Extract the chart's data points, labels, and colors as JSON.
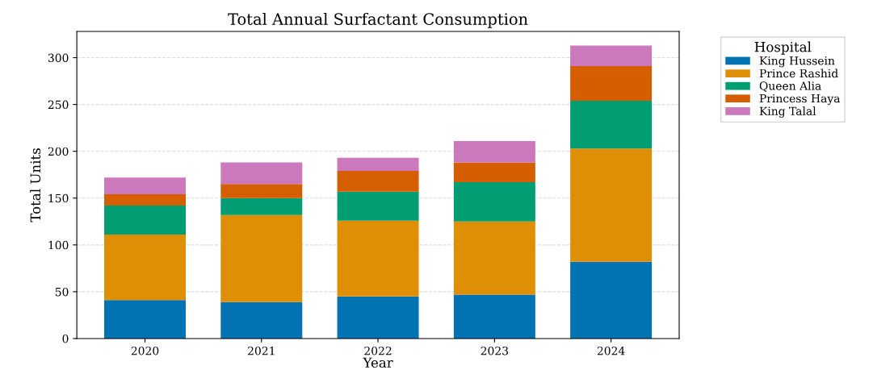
{
  "chart_data": {
    "type": "bar",
    "stacked": true,
    "title": "Total Annual Surfactant Consumption",
    "xlabel": "Year",
    "ylabel": "Total Units",
    "legend_title": "Hospital",
    "legend": "top right",
    "categories": [
      "2020",
      "2021",
      "2022",
      "2023",
      "2024"
    ],
    "series": [
      {
        "name": "King Hussein",
        "color": "#0173b2",
        "values": [
          41,
          39,
          45,
          47,
          82
        ]
      },
      {
        "name": "Prince Rashid",
        "color": "#de8f05",
        "values": [
          70,
          93,
          81,
          78,
          121
        ]
      },
      {
        "name": "Queen Alia",
        "color": "#029e73",
        "values": [
          31,
          18,
          31,
          42,
          51
        ]
      },
      {
        "name": "Princess Haya",
        "color": "#d55e00",
        "values": [
          12,
          15,
          22,
          21,
          37
        ]
      },
      {
        "name": "King Talal",
        "color": "#cc78bc",
        "values": [
          18,
          23,
          14,
          23,
          22
        ]
      }
    ],
    "ylim": [
      0,
      328
    ],
    "yticks": [
      0,
      50,
      100,
      150,
      200,
      250,
      300
    ],
    "grid": "y"
  }
}
